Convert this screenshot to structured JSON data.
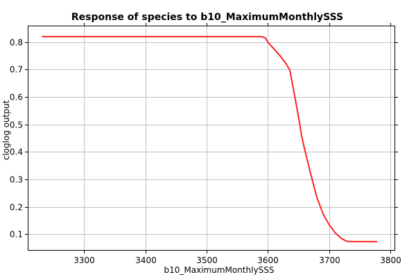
{
  "chart_data": {
    "type": "line",
    "title": "Response of species to b10_MaximumMonthlySSS",
    "xlabel": "b10_MaximumMonthlySSS",
    "ylabel": "cloglog output",
    "xlim": [
      3208,
      3808
    ],
    "ylim": [
      0.04,
      0.86
    ],
    "xticks": [
      3300,
      3400,
      3500,
      3600,
      3700,
      3800
    ],
    "yticks": [
      0.1,
      0.2,
      0.3,
      0.4,
      0.5,
      0.6,
      0.7,
      0.8
    ],
    "grid": true,
    "colors": {
      "series": "#ff2020",
      "grid": "#c0c0c0"
    },
    "series": [
      {
        "x": [
          3232,
          3300,
          3400,
          3500,
          3590,
          3596,
          3600,
          3610,
          3620,
          3630,
          3636,
          3640,
          3645,
          3650,
          3655,
          3660,
          3670,
          3680,
          3690,
          3700,
          3710,
          3720,
          3728,
          3734,
          3740,
          3760,
          3778
        ],
        "y": [
          0.82,
          0.82,
          0.82,
          0.82,
          0.82,
          0.815,
          0.8,
          0.775,
          0.75,
          0.72,
          0.697,
          0.65,
          0.59,
          0.53,
          0.46,
          0.41,
          0.32,
          0.235,
          0.175,
          0.135,
          0.105,
          0.085,
          0.075,
          0.073,
          0.073,
          0.073,
          0.073
        ]
      }
    ]
  }
}
